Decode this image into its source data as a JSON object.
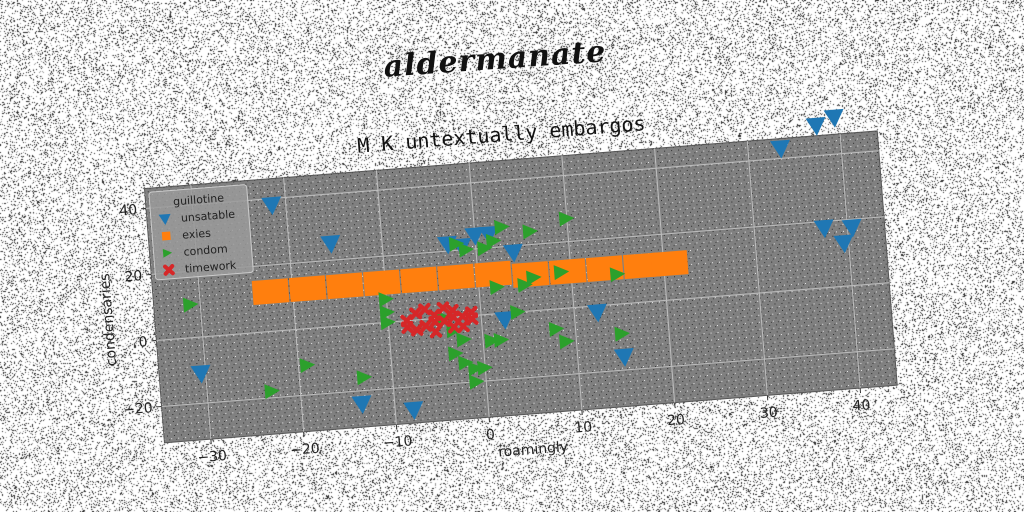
{
  "suptitle": "aldermanate",
  "chart_data": {
    "type": "scatter",
    "title": "M K untextually embargos",
    "xlabel": "roamingly",
    "ylabel": "condensaries",
    "xlim": [
      -35,
      44
    ],
    "ylim": [
      -31,
      46
    ],
    "xticks": [
      -30,
      -20,
      -10,
      0,
      10,
      20,
      30,
      40
    ],
    "yticks": [
      -20,
      0,
      20,
      40
    ],
    "grid": true,
    "legend": {
      "title": "guillotine",
      "placement": "top-left"
    },
    "plot_background": "#808080",
    "series": [
      {
        "name": "unsatable",
        "marker": "triangle-down",
        "color": "#1f77b4",
        "points": [
          [
            -21.5,
            38
          ],
          [
            -15.5,
            25
          ],
          [
            -30.5,
            -11
          ],
          [
            -13.5,
            -24
          ],
          [
            -8,
            -27
          ],
          [
            -3,
            22
          ],
          [
            -1.5,
            21
          ],
          [
            0,
            24
          ],
          [
            1.5,
            24
          ],
          [
            4,
            18
          ],
          [
            2.5,
            -2
          ],
          [
            12.5,
            -2
          ],
          [
            15,
            -16
          ],
          [
            33.5,
            43
          ],
          [
            37.5,
            49
          ],
          [
            39.5,
            51
          ],
          [
            37.5,
            18
          ],
          [
            40.5,
            17.5
          ],
          [
            39.5,
            13
          ]
        ]
      },
      {
        "name": "exies",
        "marker": "square",
        "color": "#ff7f0e",
        "points": [
          [
            -23,
            12
          ],
          [
            -19,
            12
          ],
          [
            -15,
            12
          ],
          [
            -11,
            12
          ],
          [
            -7,
            12
          ],
          [
            -3,
            12
          ],
          [
            1,
            12
          ],
          [
            5,
            11
          ],
          [
            9,
            11
          ],
          [
            13,
            11
          ],
          [
            17,
            11
          ],
          [
            20,
            11
          ]
        ]
      },
      {
        "name": "condom",
        "marker": "triangle-right",
        "color": "#2ca02c",
        "points": [
          [
            -31,
            10
          ],
          [
            -23,
            -18
          ],
          [
            -19,
            -11
          ],
          [
            -13,
            -16
          ],
          [
            -10,
            7
          ],
          [
            -10,
            3
          ],
          [
            -10,
            0
          ],
          [
            -4,
            0
          ],
          [
            -3,
            -4
          ],
          [
            -2,
            -7
          ],
          [
            -3,
            -11
          ],
          [
            -2,
            -14
          ],
          [
            -1,
            -16
          ],
          [
            0,
            -16
          ],
          [
            -1,
            -20
          ],
          [
            1,
            -8
          ],
          [
            -2,
            22
          ],
          [
            -1,
            20
          ],
          [
            1,
            20
          ],
          [
            2,
            22
          ],
          [
            3,
            26
          ],
          [
            6,
            24
          ],
          [
            10,
            27
          ],
          [
            2,
            8
          ],
          [
            5,
            8
          ],
          [
            6,
            10
          ],
          [
            9,
            11
          ],
          [
            15,
            9
          ],
          [
            4,
            0
          ],
          [
            8,
            -6
          ],
          [
            9,
            -10
          ],
          [
            15,
            -9
          ],
          [
            2,
            -8
          ]
        ]
      },
      {
        "name": "timework",
        "marker": "x",
        "color": "#d62728",
        "points": [
          [
            -8,
            0
          ],
          [
            -7,
            2
          ],
          [
            -6,
            -2
          ],
          [
            -5,
            1
          ],
          [
            -4,
            -1
          ],
          [
            -3,
            2
          ],
          [
            -2,
            0
          ],
          [
            -1,
            -1
          ],
          [
            -7,
            -3
          ],
          [
            -5,
            -4
          ],
          [
            -3,
            -3
          ],
          [
            -6,
            3
          ],
          [
            -4,
            3
          ],
          [
            -2,
            -3
          ],
          [
            -8,
            -2
          ],
          [
            -1,
            1
          ],
          [
            -5,
            -1
          ],
          [
            -3,
            0
          ]
        ]
      }
    ]
  }
}
